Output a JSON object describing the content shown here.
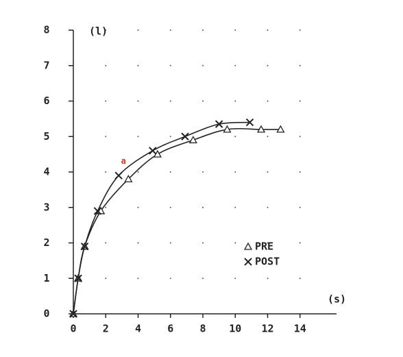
{
  "chart_data": {
    "type": "line",
    "y_label": "(l)",
    "x_label": "(s)",
    "xlim": [
      0,
      16
    ],
    "ylim": [
      0,
      8
    ],
    "xticks": [
      0,
      2,
      4,
      6,
      8,
      10,
      12,
      14
    ],
    "yticks": [
      0,
      1,
      2,
      3,
      4,
      5,
      6,
      7,
      8
    ],
    "grid": "dotted",
    "series": [
      {
        "name": "PRE",
        "color": "#222222",
        "marker": "triangle",
        "x": [
          0,
          0.3,
          0.7,
          1.7,
          3.4,
          5.2,
          7.4,
          9.5,
          11.6,
          12.8
        ],
        "values": [
          0,
          1.0,
          1.9,
          2.9,
          3.8,
          4.5,
          4.9,
          5.2,
          5.2,
          5.2
        ]
      },
      {
        "name": "POST",
        "color": "#222222",
        "marker": "x",
        "x": [
          0,
          0.3,
          0.7,
          1.5,
          2.8,
          4.9,
          6.9,
          9.0,
          10.9
        ],
        "values": [
          0,
          1.0,
          1.9,
          2.9,
          3.9,
          4.6,
          5.0,
          5.35,
          5.4
        ]
      }
    ],
    "annotations": [
      {
        "text": "a",
        "x": 3.1,
        "y": 4.3,
        "color": "#e03010"
      }
    ],
    "legend": "center-right"
  }
}
